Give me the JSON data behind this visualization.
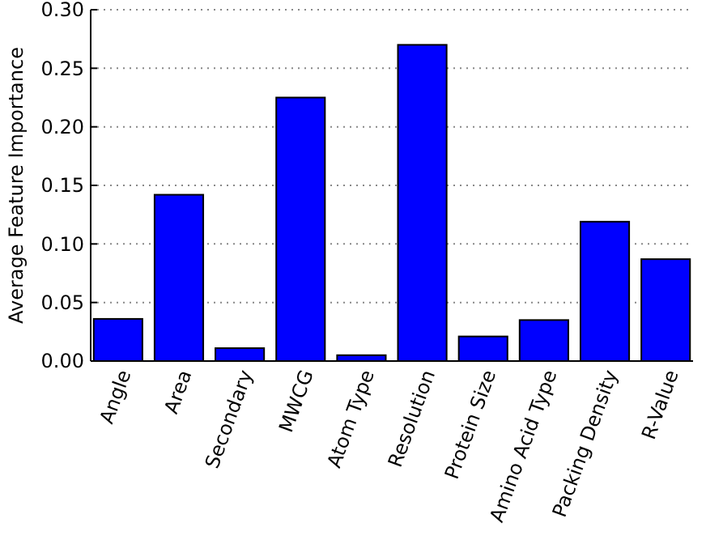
{
  "chart_data": {
    "type": "bar",
    "ylabel": "Average Feature Importance",
    "categories": [
      "Angle",
      "Area",
      "Secondary",
      "MWCG",
      "Atom Type",
      "Resolution",
      "Protein Size",
      "Amino Acid Type",
      "Packing Density",
      "R-Value"
    ],
    "values": [
      0.036,
      0.142,
      0.011,
      0.225,
      0.005,
      0.27,
      0.021,
      0.035,
      0.119,
      0.087
    ],
    "color": "#0000ff",
    "ylim": [
      0,
      0.3
    ],
    "yticks": [
      {
        "value": 0,
        "label": "0.00"
      },
      {
        "value": 0.05,
        "label": "0.05"
      },
      {
        "value": 0.1,
        "label": "0.10"
      },
      {
        "value": 0.15,
        "label": "0.15"
      },
      {
        "value": 0.2,
        "label": "0.20"
      },
      {
        "value": 0.25,
        "label": "0.25"
      },
      {
        "value": 0.3,
        "label": "0.30"
      }
    ],
    "grid": "y"
  }
}
